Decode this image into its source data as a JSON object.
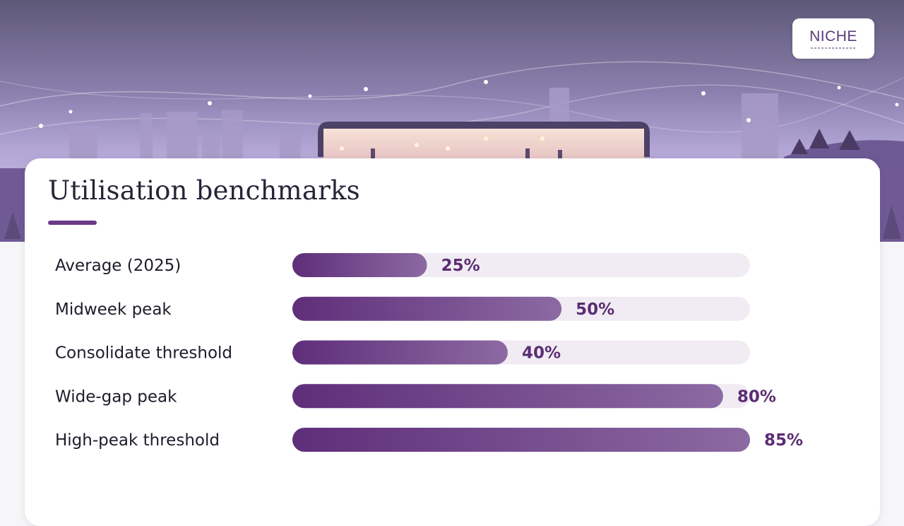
{
  "brand": {
    "logo_text": "NICHE"
  },
  "slide": {
    "title": "Utilisation benchmarks"
  },
  "colors": {
    "accent": "#6a3a86",
    "bar_start": "#5f2e7a",
    "bar_end": "#8c6aa2",
    "track": "#f1ecf3",
    "label_text": "#1f1b2a",
    "value_text": "#5b2d74"
  },
  "chart_data": {
    "type": "bar",
    "orientation": "horizontal",
    "categories": [
      "Average (2025)",
      "Midweek peak",
      "Consolidate threshold",
      "Wide-gap peak",
      "High-peak threshold"
    ],
    "values": [
      25,
      50,
      40,
      80,
      85
    ],
    "value_labels": [
      "25%",
      "50%",
      "40%",
      "80%",
      "85%"
    ],
    "xlim": [
      0,
      85
    ],
    "title": "Utilisation benchmarks",
    "xlabel": "",
    "ylabel": "",
    "grid": false,
    "legend": "none"
  }
}
